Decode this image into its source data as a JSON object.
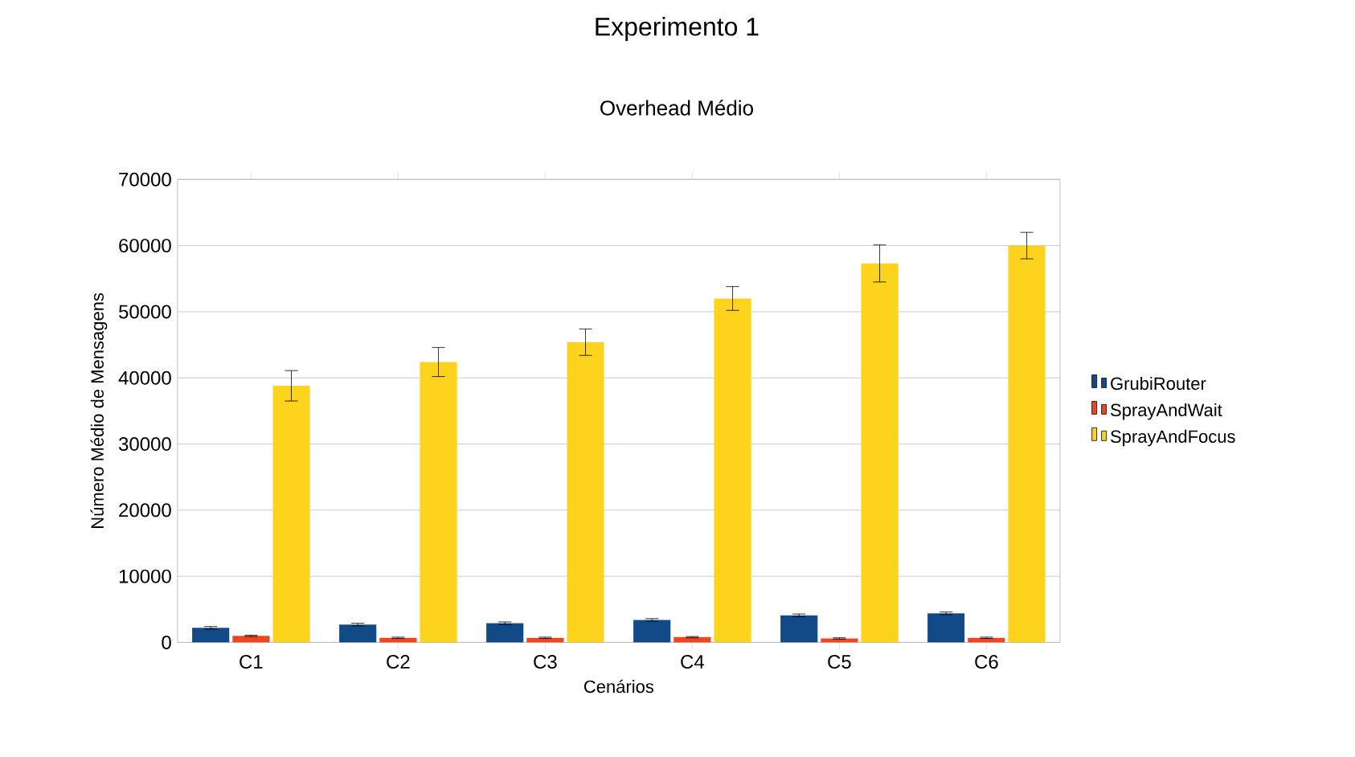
{
  "chart_data": {
    "type": "bar",
    "title": "Experimento 1",
    "subtitle": "Overhead Médio",
    "xlabel": "Cenários",
    "ylabel": "Número Médio de Mensagens",
    "categories": [
      "C1",
      "C2",
      "C3",
      "C4",
      "C5",
      "C6"
    ],
    "series": [
      {
        "name": "GrubiRouter",
        "color": "#114a86",
        "values": [
          2200,
          2700,
          2900,
          3400,
          4100,
          4400
        ],
        "errors": [
          200,
          200,
          200,
          200,
          200,
          200
        ]
      },
      {
        "name": "SprayAndWait",
        "color": "#f0451e",
        "values": [
          1000,
          700,
          700,
          800,
          600,
          700
        ],
        "errors": [
          100,
          100,
          100,
          100,
          100,
          100
        ]
      },
      {
        "name": "SprayAndFocus",
        "color": "#fdd31d",
        "values": [
          38800,
          42400,
          45400,
          52000,
          57300,
          60000
        ],
        "errors": [
          2300,
          2200,
          2000,
          1800,
          2800,
          2000
        ]
      }
    ],
    "ylim": [
      0,
      70000
    ],
    "yticks": [
      0,
      10000,
      20000,
      30000,
      40000,
      50000,
      60000,
      70000
    ],
    "grid": "y",
    "legend": "right"
  }
}
